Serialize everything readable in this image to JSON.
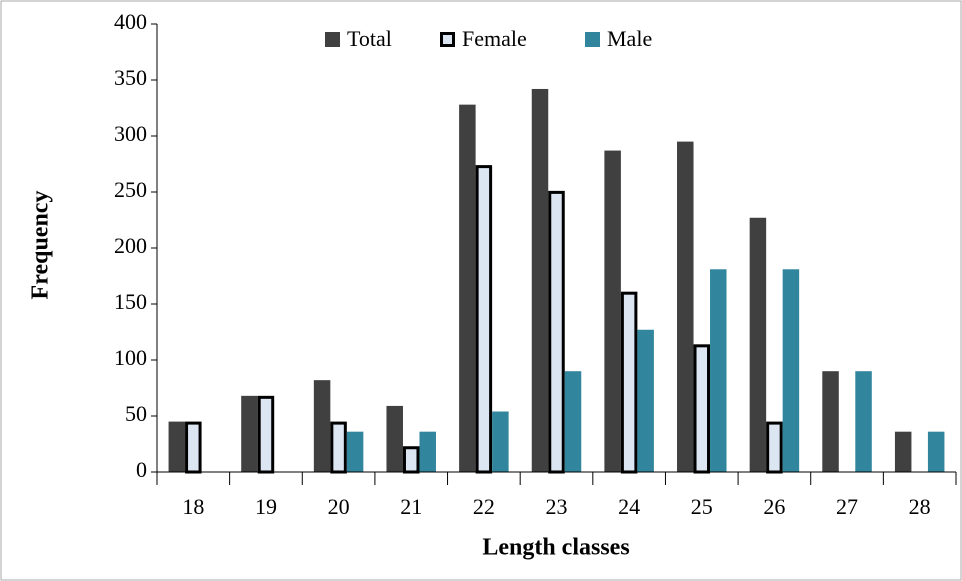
{
  "chart_data": {
    "type": "bar",
    "x_label": "Length classes",
    "y_label": "Frequency",
    "categories": [
      "18",
      "19",
      "20",
      "21",
      "22",
      "23",
      "24",
      "25",
      "26",
      "27",
      "28"
    ],
    "series": [
      {
        "name": "Total",
        "color": "#404040",
        "values": [
          45,
          68,
          82,
          59,
          328,
          342,
          287,
          295,
          227,
          90,
          36
        ]
      },
      {
        "name": "Female",
        "color": "#dce6f2",
        "values": [
          45,
          68,
          45,
          23,
          274,
          251,
          161,
          114,
          45,
          null,
          null
        ]
      },
      {
        "name": "Male",
        "color": "#31859c",
        "values": [
          null,
          null,
          36,
          36,
          54,
          90,
          127,
          181,
          181,
          90,
          36
        ]
      }
    ],
    "ylim": [
      0,
      400
    ],
    "yticks": [
      0,
      50,
      100,
      150,
      200,
      250,
      300,
      350,
      400
    ],
    "legend": "top",
    "grid": false
  }
}
